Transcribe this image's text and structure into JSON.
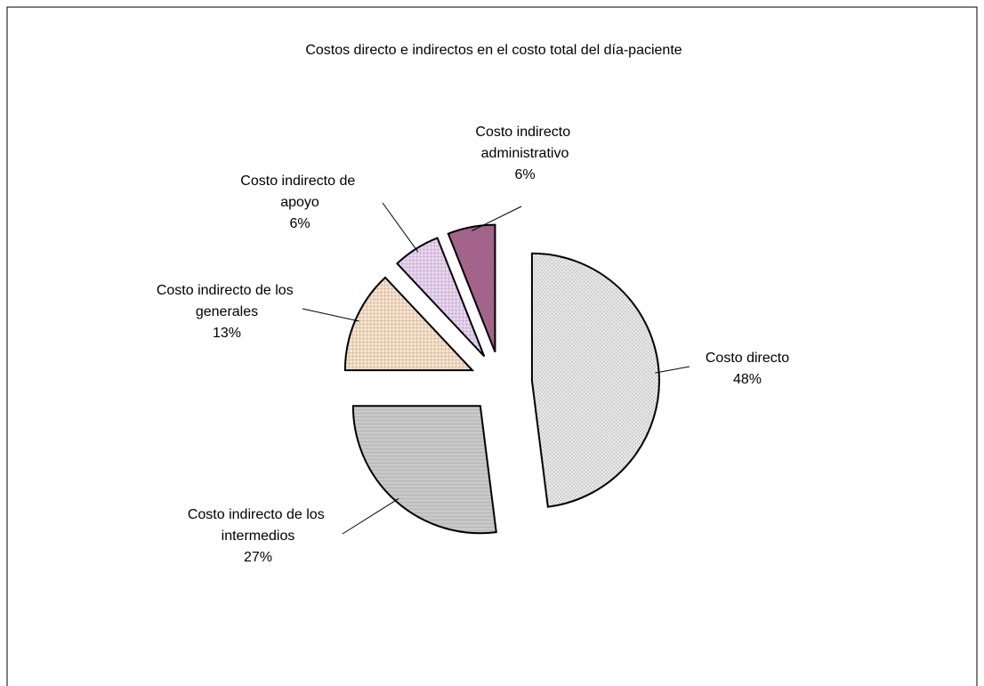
{
  "chart_data": {
    "type": "pie",
    "title": "Costos directo e indirectos en el costo total del día-paciente",
    "categories": [
      "Costo directo",
      "Costo indirecto de los intermedios",
      "Costo indirecto de los generales",
      "Costo indirecto de apoyo",
      "Costo indirecto administrativo"
    ],
    "values": [
      48,
      27,
      13,
      6,
      6
    ],
    "value_labels": [
      "48%",
      "27%",
      "13%",
      "6%",
      "6%"
    ],
    "colors": [
      "#e4e4e4",
      "#c8c8c8",
      "#fde3c8",
      "#ecd4f4",
      "#b0508a"
    ]
  }
}
